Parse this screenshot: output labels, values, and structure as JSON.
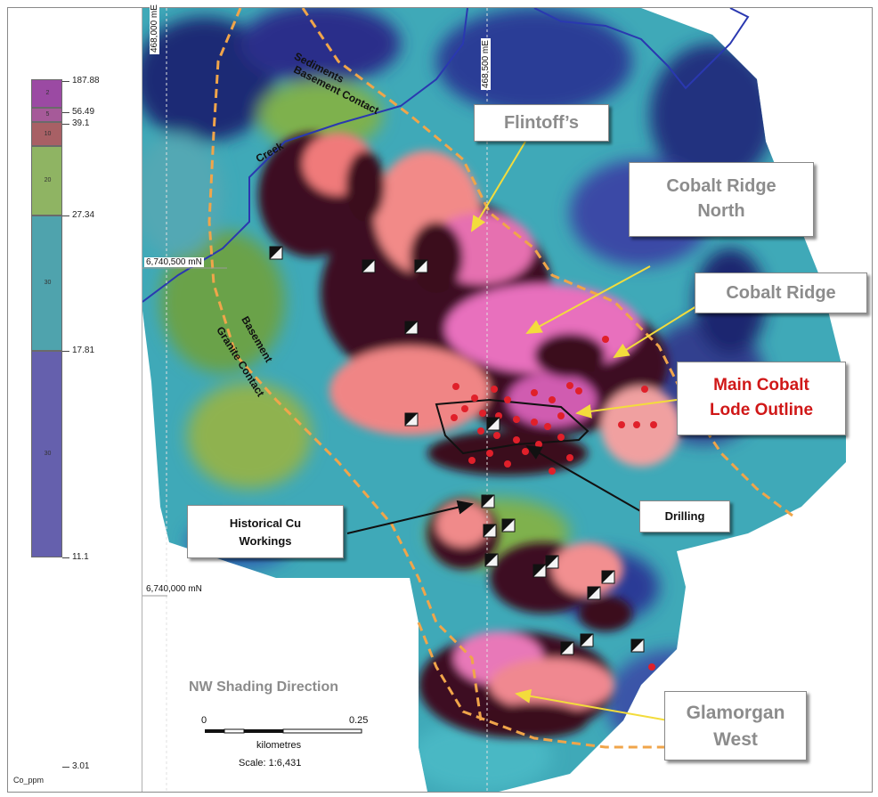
{
  "legend": {
    "title": "Co_ppm",
    "ticks": [
      "187.88",
      "56.49",
      "39.1",
      "27.34",
      "17.81",
      "11.1",
      "3.01"
    ],
    "counts": [
      "2",
      "5",
      "10",
      "20",
      "30",
      "30"
    ],
    "colors": [
      "#9b4aa3",
      "#a65a99",
      "#a86065",
      "#8fb463",
      "#4fa3ad",
      "#6560ad"
    ]
  },
  "map_labels": {
    "flintoffs": "Flintoff’s",
    "cobalt_ridge_north_1": "Cobalt Ridge",
    "cobalt_ridge_north_2": "North",
    "cobalt_ridge": "Cobalt Ridge",
    "main_cobalt_1": "Main Cobalt",
    "main_cobalt_2": "Lode Outline",
    "drilling": "Drilling",
    "historical_1": "Historical Cu",
    "historical_2": "Workings",
    "glamorgan_1": "Glamorgan",
    "glamorgan_2": "West",
    "shading": "NW Shading Direction"
  },
  "feature_labels": {
    "sediments": "Sediments",
    "basement_contact": "Basement Contact",
    "creek": "Creek",
    "basement": "Basement",
    "granite_contact": "Granite Contact"
  },
  "grid": {
    "easting_1": "468,000 mE",
    "easting_2": "468,500 mE",
    "northing_1": "6,740,500 mN",
    "northing_2": "6,740,000 mN"
  },
  "scalebar": {
    "start": "0",
    "end": "0.25",
    "units": "kilometres",
    "scale": "Scale: 1:6,431"
  },
  "colors": {
    "label_grey": "#8c8c8c",
    "label_red": "#d01818",
    "arrow_yellow": "#f3dc3c",
    "contact_orange": "#f0a54a",
    "creek_blue": "#2a38b0",
    "drill_red": "#e0202a"
  }
}
